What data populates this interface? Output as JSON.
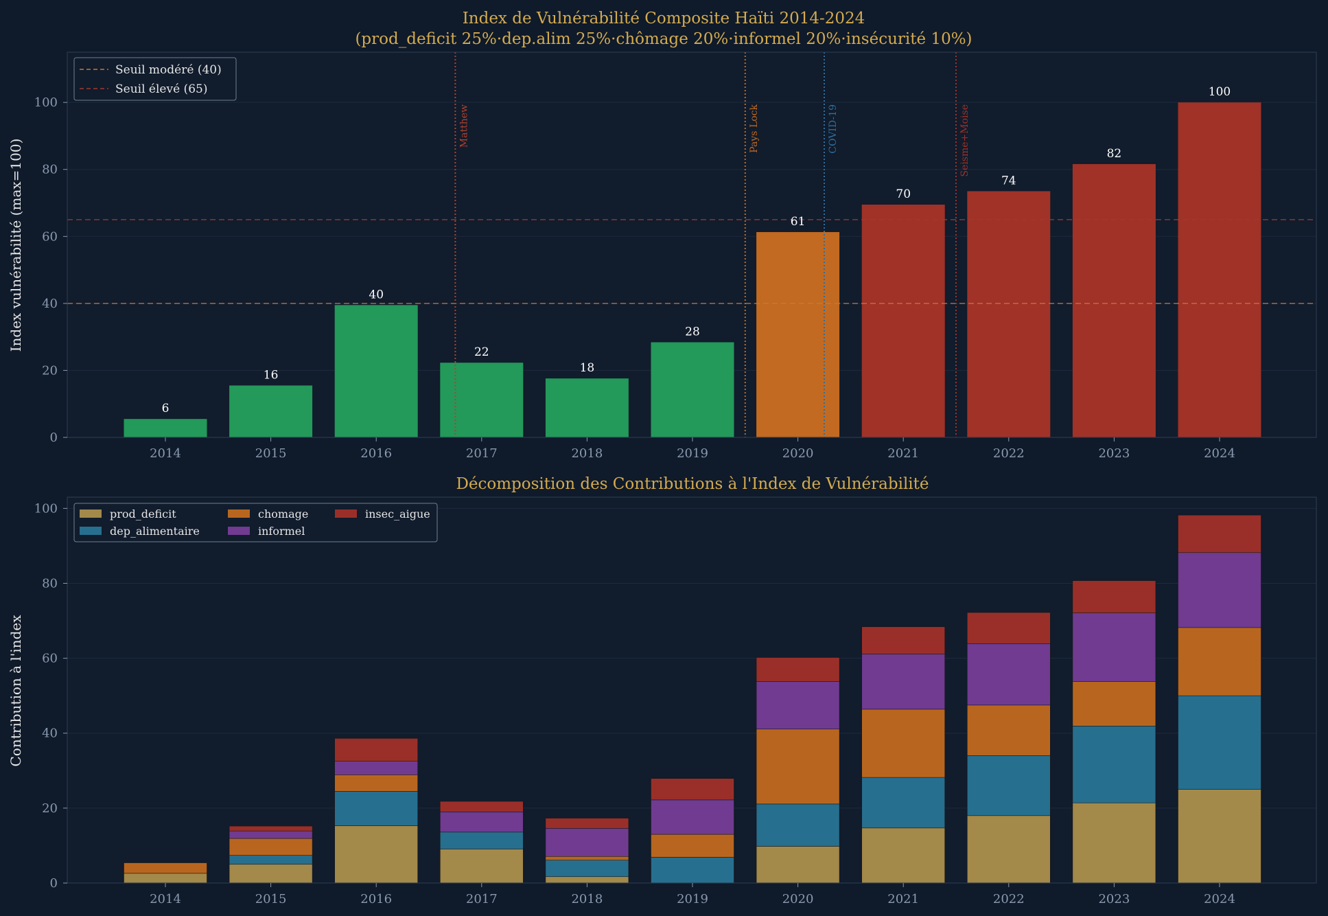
{
  "chart_data": [
    {
      "type": "bar",
      "title": "Index de Vulnérabilité Composite Haïti 2014-2024",
      "subtitle": "(prod_deficit 25%·dep.alim 25%·chômage 20%·informel 20%·insécurité 10%)",
      "ylabel": "Index vulnérabilité (max=100)",
      "xlabel": "",
      "ylim": [
        0,
        115
      ],
      "yticks": [
        "0",
        "20",
        "40",
        "60",
        "80",
        "100"
      ],
      "categories": [
        "2014",
        "2015",
        "2016",
        "2017",
        "2018",
        "2019",
        "2020",
        "2021",
        "2022",
        "2023",
        "2024"
      ],
      "values": [
        5.5,
        15.5,
        39.5,
        22.3,
        17.6,
        28.4,
        61.3,
        69.5,
        73.5,
        81.6,
        100
      ],
      "value_labels": [
        "6",
        "16",
        "40",
        "22",
        "18",
        "28",
        "61",
        "70",
        "74",
        "82",
        "100"
      ],
      "colors": {
        "bas": "#23995a",
        "modere": "#c26a21",
        "eleve": "#a03228"
      },
      "bar_colors": [
        "#23995a",
        "#23995a",
        "#23995a",
        "#23995a",
        "#23995a",
        "#23995a",
        "#c26a21",
        "#a03228",
        "#a03228",
        "#a03228",
        "#a03228"
      ],
      "thresholds": [
        {
          "label": "Seuil modéré (40)",
          "value": 40,
          "color": "#c87a35"
        },
        {
          "label": "Seuil élevé (65)",
          "value": 65,
          "color": "#a03a32"
        }
      ],
      "events": [
        {
          "label": "Matthew",
          "x": 2016.75,
          "color": "#b5412c"
        },
        {
          "label": "Pays Lock",
          "x": 2019.5,
          "color": "#c26a21"
        },
        {
          "label": "COVID-19",
          "x": 2020.25,
          "color": "#2e6f9e"
        },
        {
          "label": "Seisme+Moise",
          "x": 2021.5,
          "color": "#a03228"
        }
      ],
      "grid": true,
      "legend": "top-left"
    },
    {
      "type": "bar",
      "stacked": true,
      "title": "Décomposition des Contributions à l'Index de Vulnérabilité",
      "ylabel": "Contribution à l'index",
      "xlabel": "",
      "ylim": [
        0,
        103
      ],
      "yticks": [
        "0",
        "20",
        "40",
        "60",
        "80",
        "100"
      ],
      "categories": [
        "2014",
        "2015",
        "2016",
        "2017",
        "2018",
        "2019",
        "2020",
        "2021",
        "2022",
        "2023",
        "2024"
      ],
      "series": [
        {
          "name": "prod_deficit",
          "color": "#a3894a",
          "values": [
            2.6,
            5.0,
            15.3,
            9.1,
            1.7,
            0.0,
            9.8,
            14.7,
            18.0,
            21.4,
            25.0
          ]
        },
        {
          "name": "dep_alimentaire",
          "color": "#276f8f",
          "values": [
            0.0,
            2.4,
            9.2,
            4.5,
            4.4,
            6.9,
            11.3,
            13.5,
            16.0,
            20.5,
            25.0
          ]
        },
        {
          "name": "chomage",
          "color": "#b8661f",
          "values": [
            2.8,
            4.5,
            4.4,
            0.0,
            1.0,
            6.1,
            20.0,
            18.2,
            13.5,
            11.9,
            18.2
          ]
        },
        {
          "name": "informel",
          "color": "#703b91",
          "values": [
            0.0,
            2.0,
            3.6,
            5.4,
            7.5,
            9.2,
            12.7,
            14.7,
            16.4,
            18.3,
            20.0
          ]
        },
        {
          "name": "insec_aigue",
          "color": "#9a2f2a",
          "values": [
            0.0,
            1.3,
            6.1,
            2.8,
            2.7,
            5.7,
            6.4,
            7.3,
            8.3,
            8.6,
            10.0
          ]
        }
      ],
      "grid": true,
      "legend": "top-left"
    }
  ]
}
